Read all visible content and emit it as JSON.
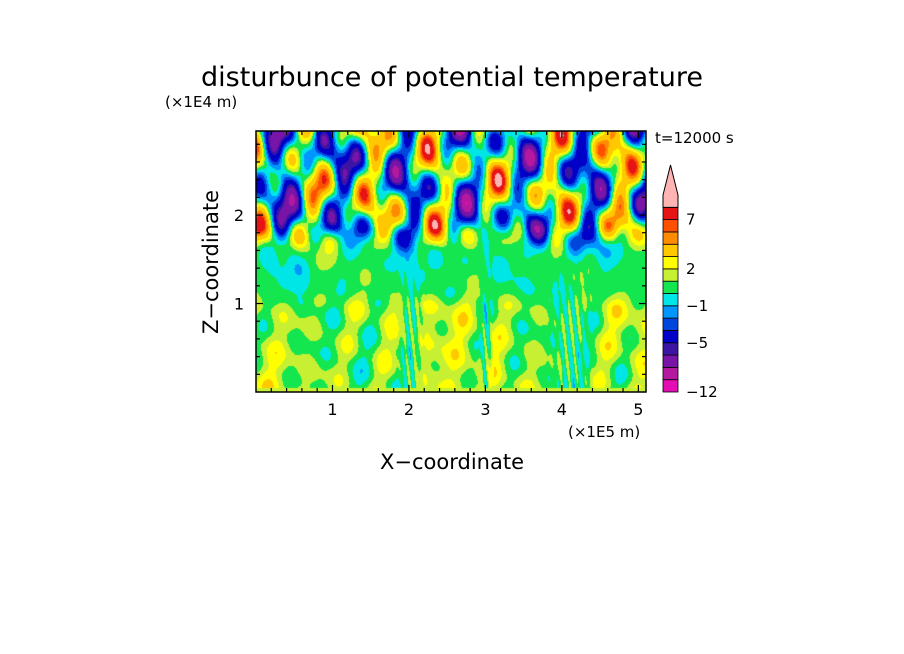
{
  "chart_data": {
    "type": "heatmap",
    "title": "disturbunce of potential temperature",
    "xlabel": "X−coordinate",
    "ylabel": "Z−coordinate",
    "x_unit": "(×1E5 m)",
    "y_unit": "(×1E4 m)",
    "time_label": "t=12000 s",
    "xlim": [
      0,
      5.1
    ],
    "ylim": [
      0,
      2.95
    ],
    "x_ticks": [
      {
        "v": 1,
        "label": "1"
      },
      {
        "v": 2,
        "label": "2"
      },
      {
        "v": 3,
        "label": "3"
      },
      {
        "v": 4,
        "label": "4"
      },
      {
        "v": 5,
        "label": "5"
      }
    ],
    "y_ticks": [
      {
        "v": 1,
        "label": "1"
      },
      {
        "v": 2,
        "label": "2"
      }
    ],
    "colorbar": {
      "levels": [
        -12,
        -10,
        -8,
        -6,
        -5,
        -3,
        -2,
        -1,
        0,
        1,
        2,
        3,
        5,
        6,
        7,
        9,
        12
      ],
      "colors": [
        "#e40cb3",
        "#b4189f",
        "#7814a8",
        "#3c14a4",
        "#0000c8",
        "#0046dc",
        "#0096ff",
        "#00e6e6",
        "#14e650",
        "#c8f032",
        "#ffff00",
        "#ffc800",
        "#ff8c00",
        "#ff5000",
        "#e61414",
        "#ffb4b4"
      ],
      "labels": [
        {
          "v": 7,
          "label": "7"
        },
        {
          "v": 2,
          "label": "2"
        },
        {
          "v": -1,
          "label": "−1"
        },
        {
          "v": -5,
          "label": "−5"
        },
        {
          "v": -12,
          "label": "−12"
        }
      ],
      "extend": "max"
    },
    "field_description": {
      "lower_layer_below_z1": "mostly 1 to 3 with near-zero vertical streaks near x=2.0, 3.0, 4.1",
      "upper_layer_above_z1.3": "wave pattern alternating between about -8 and +9",
      "strong_negative_region": "around x=0.3-0.6, z=2.3-2.6"
    }
  }
}
